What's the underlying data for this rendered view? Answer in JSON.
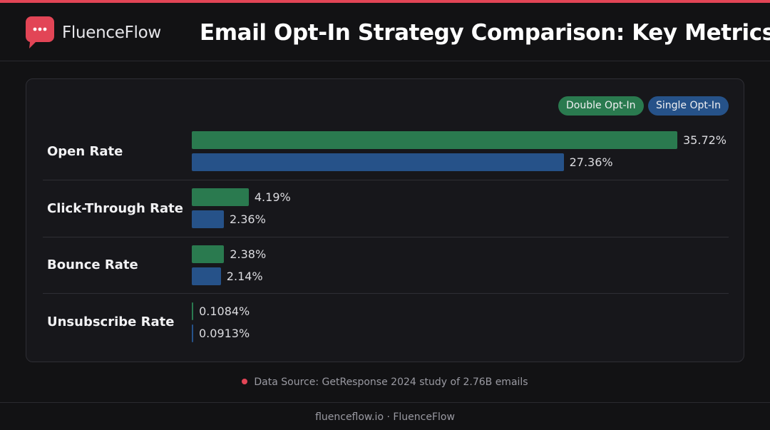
{
  "brand": {
    "name": "FluenceFlow",
    "accent_color": "#e24556"
  },
  "header": {
    "title": "Email Opt-In Strategy Comparison: Key Metrics"
  },
  "legend": {
    "double_label": "Double Opt-In",
    "single_label": "Single Opt-In",
    "double_color": "#2a7a4f",
    "single_color": "#265289"
  },
  "chart_data": {
    "type": "bar",
    "orientation": "horizontal",
    "title": "Email Opt-In Strategy Comparison: Key Metrics",
    "categories": [
      "Open Rate",
      "Click-Through Rate",
      "Bounce Rate",
      "Unsubscribe Rate"
    ],
    "series": [
      {
        "name": "Double Opt-In",
        "values": [
          35.72,
          4.19,
          2.38,
          0.1084
        ],
        "labels": [
          "35.72%",
          "4.19%",
          "2.38%",
          "0.1084%"
        ],
        "color": "#2a7a4f"
      },
      {
        "name": "Single Opt-In",
        "values": [
          27.36,
          2.36,
          2.14,
          0.0913
        ],
        "labels": [
          "27.36%",
          "2.36%",
          "2.14%",
          "0.0913%"
        ],
        "color": "#265289"
      }
    ],
    "unit": "%",
    "grid": false,
    "legend_position": "top-right"
  },
  "source": {
    "text": "Data Source: GetResponse 2024 study of 2.76B emails"
  },
  "footer": {
    "text": "fluenceflow.io · FluenceFlow"
  }
}
